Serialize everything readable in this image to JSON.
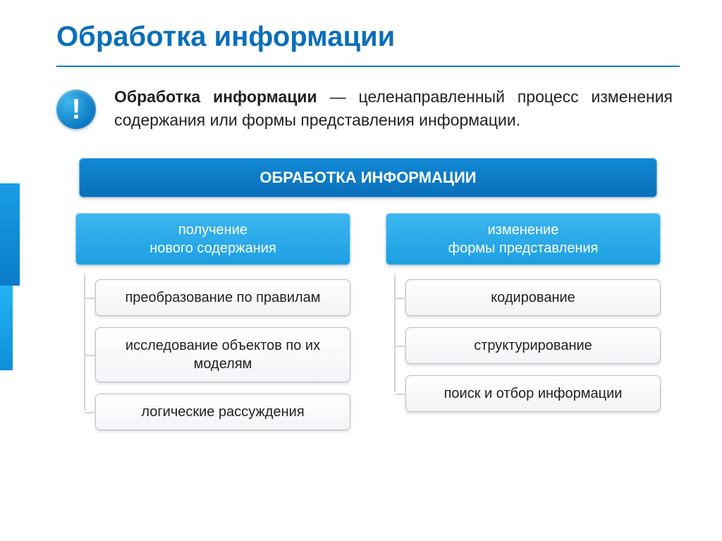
{
  "title": "Обработка информации",
  "definition": {
    "term": "Обработка информации",
    "dash": " — ",
    "body": "целенаправленный процесс изменения содержания или формы представления информации."
  },
  "icon_glyph": "!",
  "colors": {
    "title": "#0b6fb8",
    "rule": "#0b7fcf",
    "badge_grad_a": "#3fb8ed",
    "badge_grad_b": "#0d79c4",
    "topbar_grad_a": "#1289d6",
    "topbar_grad_b": "#0a6fb8",
    "colhead_grad_a": "#3cb6ef",
    "colhead_grad_b": "#1d9fe3",
    "leaf_border": "#b7bcc5",
    "connector": "#d0d4da",
    "side_accent_a": "#1a9ee5",
    "side_accent_b": "#0a7bc9"
  },
  "diagram": {
    "root": "ОБРАБОТКА ИНФОРМАЦИИ",
    "columns": [
      {
        "head": "получение\nнового содержания",
        "leaves": [
          "преобразование по правилам",
          "исследование объектов по их моделям",
          "логические рассуждения"
        ]
      },
      {
        "head": "изменение\nформы представления",
        "leaves": [
          "кодирование",
          "структурирование",
          "поиск и отбор информации"
        ]
      }
    ]
  }
}
